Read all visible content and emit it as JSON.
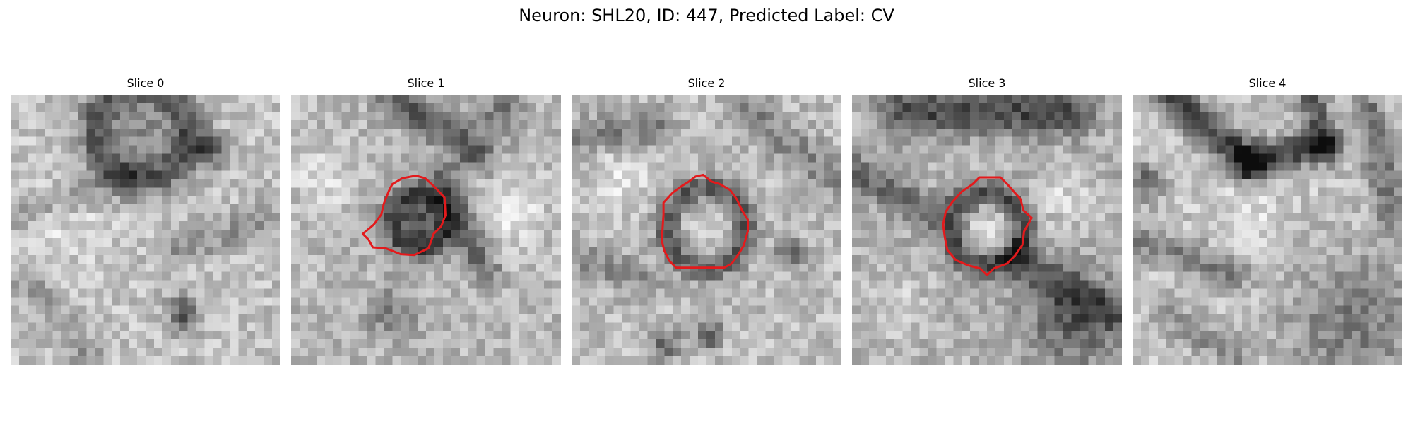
{
  "figure": {
    "title": "Neuron: SHL20, ID: 447, Predicted Label: CV"
  },
  "panels": [
    {
      "title": "Slice 0",
      "has_contour": false
    },
    {
      "title": "Slice 1",
      "has_contour": true
    },
    {
      "title": "Slice 2",
      "has_contour": true
    },
    {
      "title": "Slice 3",
      "has_contour": true
    },
    {
      "title": "Slice 4",
      "has_contour": false
    }
  ],
  "colors": {
    "background": "#ffffff",
    "contour": "#e31a1c",
    "image_colormap": "grayscale"
  }
}
